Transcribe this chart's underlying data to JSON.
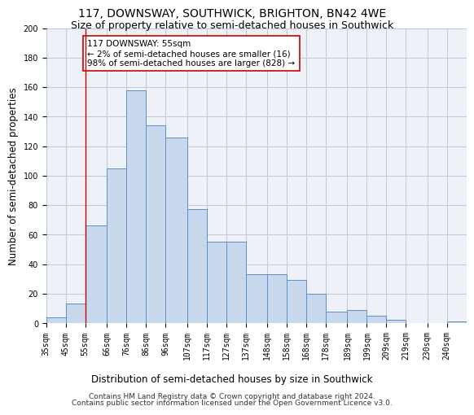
{
  "title1": "117, DOWNSWAY, SOUTHWICK, BRIGHTON, BN42 4WE",
  "title2": "Size of property relative to semi-detached houses in Southwick",
  "xlabel": "Distribution of semi-detached houses by size in Southwick",
  "ylabel": "Number of semi-detached properties",
  "footer1": "Contains HM Land Registry data © Crown copyright and database right 2024.",
  "footer2": "Contains public sector information licensed under the Open Government Licence v3.0.",
  "annotation_title": "117 DOWNSWAY: 55sqm",
  "annotation_line1": "← 2% of semi-detached houses are smaller (16)",
  "annotation_line2": "98% of semi-detached houses are larger (828) →",
  "property_size": 55,
  "bin_edges": [
    35,
    45,
    55,
    66,
    76,
    86,
    96,
    107,
    117,
    127,
    137,
    148,
    158,
    168,
    178,
    189,
    199,
    209,
    219,
    230,
    240,
    250
  ],
  "bar_heights": [
    4,
    13,
    66,
    105,
    158,
    134,
    126,
    77,
    55,
    55,
    33,
    33,
    29,
    20,
    8,
    9,
    5,
    2,
    0,
    0,
    1
  ],
  "bar_color": "#c9d9ed",
  "bar_edge_color": "#5b8fc9",
  "vline_x": 55,
  "vline_color": "#cc0000",
  "grid_color": "#c0c8d8",
  "bg_color": "#eef2f8",
  "ylim": [
    0,
    200
  ],
  "yticks": [
    0,
    20,
    40,
    60,
    80,
    100,
    120,
    140,
    160,
    180,
    200
  ],
  "tick_labels": [
    "35sqm",
    "45sqm",
    "55sqm",
    "66sqm",
    "76sqm",
    "86sqm",
    "96sqm",
    "107sqm",
    "117sqm",
    "127sqm",
    "137sqm",
    "148sqm",
    "158sqm",
    "168sqm",
    "178sqm",
    "189sqm",
    "199sqm",
    "209sqm",
    "219sqm",
    "230sqm",
    "240sqm"
  ],
  "annot_box_color": "#ffffff",
  "annot_border_color": "#cc0000",
  "title1_fontsize": 10,
  "title2_fontsize": 9,
  "axis_label_fontsize": 8.5,
  "tick_fontsize": 7,
  "footer_fontsize": 6.5,
  "annot_fontsize": 7.5
}
